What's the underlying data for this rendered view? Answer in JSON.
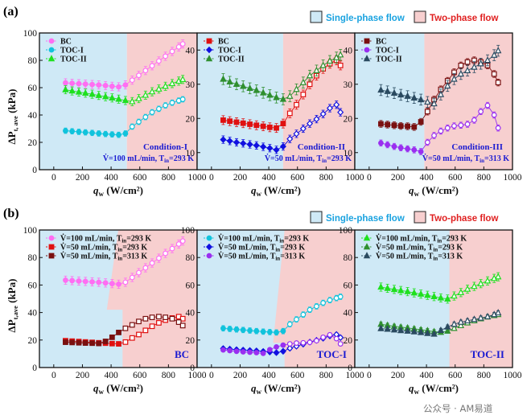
{
  "figure": {
    "panel_a_label": "(a)",
    "panel_b_label": "(b)",
    "single_phase_label": "Single-phase flow",
    "two_phase_label": "Two-phase flow",
    "xlabel_q": "q",
    "xlabel_sub": "w",
    "xlabel_unit": " (W/cm²)",
    "ylabel_delta": "ΔP",
    "ylabel_sub_a": "t, ave",
    "ylabel_sub_b": "t,ave",
    "ylabel_unit": " (kPa)",
    "watermark": "公众号 · AM易道",
    "colors": {
      "single_phase": "#cfe9f6",
      "two_phase": "#f7cfcf",
      "bc": "#ff6ef2",
      "toc1": "#11c3dc",
      "toc2": "#1fe01f",
      "red": "#e01010",
      "blue": "#1010e0",
      "olive": "#2f8f2f",
      "maroon": "#7a1010",
      "purple": "#9a2ff0",
      "darkteal": "#2a4a60",
      "condition_text": "#1b1bd1"
    }
  },
  "chart_data": [
    {
      "id": "a1",
      "type": "line",
      "ylim": [
        0,
        100
      ],
      "xlim": [
        -100,
        1000
      ],
      "yticks": [
        0,
        20,
        40,
        60,
        80,
        100
      ],
      "xticks": [
        0,
        200,
        400,
        600,
        800,
        1000
      ],
      "transition_q": 510,
      "legend": [
        "BC",
        "TOC-I",
        "TOC-II"
      ],
      "condition": "Condition-I",
      "condition_line": "V̇=100 mL/min, T",
      "condition_sub": "in",
      "condition_tail": "=293 K",
      "x": [
        82,
        128,
        175,
        221,
        268,
        314,
        361,
        407,
        453,
        500,
        547,
        593,
        640,
        686,
        733,
        779,
        826,
        872,
        900
      ],
      "series": [
        {
          "name": "BC",
          "color": "bc",
          "marker": "circle",
          "err": 3,
          "values": [
            63.5,
            63.2,
            62.9,
            62.6,
            62.3,
            62.0,
            61.5,
            61.0,
            60.6,
            62.0,
            65.5,
            69.0,
            72.5,
            76.0,
            79.5,
            83.0,
            86.5,
            89.8,
            92.0
          ]
        },
        {
          "name": "TOC-I",
          "color": "toc1",
          "marker": "circle",
          "err": 2,
          "values": [
            28.5,
            28.1,
            27.7,
            27.3,
            26.9,
            26.5,
            26.1,
            25.8,
            25.5,
            26.5,
            31.5,
            35.0,
            38.5,
            42.0,
            44.5,
            47.0,
            49.0,
            50.5,
            51.5
          ]
        },
        {
          "name": "TOC-II",
          "color": "toc2",
          "marker": "triangle",
          "err": 3,
          "values": [
            58.5,
            57.6,
            56.8,
            56.0,
            55.2,
            54.3,
            53.4,
            52.5,
            51.6,
            50.6,
            49.8,
            52.0,
            54.5,
            57.0,
            59.0,
            61.0,
            63.0,
            64.8,
            66.0
          ]
        }
      ]
    },
    {
      "id": "a2",
      "type": "line",
      "ylim": [
        5,
        45
      ],
      "xlim": [
        -100,
        1000
      ],
      "yticks": [
        10,
        20,
        30,
        40
      ],
      "xticks": [
        0,
        200,
        400,
        600,
        800,
        1000
      ],
      "transition_q": 500,
      "legend": [
        "BC",
        "TOC-I",
        "TOC-II"
      ],
      "condition": "Condition-II",
      "condition_line": "V̇=50 mL/min, T",
      "condition_sub": "in",
      "condition_tail": "=293 K",
      "x": [
        82,
        128,
        175,
        221,
        268,
        314,
        361,
        407,
        453,
        500,
        547,
        593,
        640,
        686,
        733,
        779,
        826,
        872,
        900
      ],
      "series": [
        {
          "name": "BC",
          "color": "red",
          "marker": "square",
          "err": 1.3,
          "values": [
            19.5,
            19.2,
            18.9,
            18.6,
            18.3,
            18.0,
            17.7,
            17.4,
            17.2,
            18.5,
            21.5,
            24.0,
            27.0,
            30.0,
            32.5,
            34.5,
            36.0,
            37.0,
            35.5
          ]
        },
        {
          "name": "TOC-I",
          "color": "blue",
          "marker": "diamond",
          "err": 1.1,
          "values": [
            13.8,
            13.4,
            13.0,
            12.7,
            12.4,
            12.1,
            11.7,
            11.3,
            10.8,
            11.8,
            14.0,
            15.5,
            17.0,
            18.5,
            19.8,
            21.3,
            23.0,
            24.0,
            21.8
          ]
        },
        {
          "name": "TOC-II",
          "color": "olive",
          "marker": "triangle",
          "err": 1.6,
          "values": [
            31.5,
            30.7,
            30.0,
            29.4,
            28.8,
            28.2,
            27.5,
            26.8,
            26.1,
            25.6,
            26.5,
            28.5,
            30.5,
            32.5,
            34.0,
            35.5,
            36.8,
            37.8,
            38.6
          ]
        }
      ]
    },
    {
      "id": "a3",
      "type": "line",
      "ylim": [
        5,
        45
      ],
      "xlim": [
        -100,
        1000
      ],
      "yticks": [
        10,
        20,
        30,
        40
      ],
      "xticks": [
        0,
        200,
        400,
        600,
        800,
        1000
      ],
      "transition_q": 385,
      "legend": [
        "BC",
        "TOC-I",
        "TOC-II"
      ],
      "condition": "Condition-III",
      "condition_line": "V̇=50 mL/min, T",
      "condition_sub": "in",
      "condition_tail": "=313 K",
      "x": [
        82,
        128,
        175,
        221,
        268,
        314,
        361,
        407,
        453,
        500,
        547,
        593,
        640,
        686,
        733,
        779,
        826,
        872,
        900
      ],
      "series": [
        {
          "name": "BC",
          "color": "maroon",
          "marker": "square",
          "err": 1.0,
          "values": [
            18.4,
            18.2,
            18.0,
            17.8,
            17.7,
            17.5,
            19.0,
            22.0,
            25.5,
            28.5,
            31.0,
            33.5,
            35.5,
            36.5,
            37.0,
            36.5,
            35.5,
            33.0,
            30.5
          ]
        },
        {
          "name": "TOC-I",
          "color": "purple",
          "marker": "circle",
          "err": 0.9,
          "values": [
            12.8,
            12.3,
            11.8,
            11.4,
            11.1,
            10.8,
            10.3,
            13.0,
            15.0,
            16.3,
            17.2,
            17.8,
            18.0,
            18.3,
            19.5,
            22.0,
            23.8,
            21.0,
            17.2
          ]
        },
        {
          "name": "TOC-II",
          "color": "darkteal",
          "marker": "triangle",
          "err": 1.6,
          "values": [
            28.3,
            27.9,
            27.4,
            26.9,
            26.5,
            26.0,
            25.5,
            24.8,
            24.3,
            27.0,
            29.5,
            31.5,
            33.0,
            34.0,
            35.0,
            36.0,
            37.0,
            38.5,
            39.8
          ]
        }
      ]
    },
    {
      "id": "b1",
      "type": "line",
      "ylim": [
        0,
        100
      ],
      "xlim": [
        -100,
        1000
      ],
      "yticks": [
        0,
        20,
        40,
        60,
        80,
        100
      ],
      "xticks": [
        0,
        200,
        400,
        600,
        800,
        1000
      ],
      "transition_q": 480,
      "transition_top_q": 450,
      "transition_y": 42,
      "transition_y_q": 370,
      "legend": [
        "V̇=100 mL/min, T_in=293 K",
        "V̇=50 mL/min, T_in=293 K",
        "V̇=50 mL/min, T_in=313 K"
      ],
      "tag": "BC",
      "x": [
        82,
        128,
        175,
        221,
        268,
        314,
        361,
        407,
        453,
        500,
        547,
        593,
        640,
        686,
        733,
        779,
        826,
        872,
        900
      ],
      "series": [
        {
          "name": "V̇=100 mL/min, Tin=293 K",
          "color": "bc",
          "marker": "circle",
          "err": 3,
          "values": [
            63.5,
            63.2,
            62.9,
            62.6,
            62.3,
            62.0,
            61.5,
            61.0,
            60.6,
            62.0,
            65.5,
            69.0,
            72.5,
            76.0,
            79.5,
            83.0,
            86.5,
            89.8,
            92.0
          ]
        },
        {
          "name": "V̇=50 mL/min, Tin=293 K",
          "color": "red",
          "marker": "square",
          "err": 1.6,
          "values": [
            19.5,
            19.2,
            18.9,
            18.6,
            18.3,
            18.0,
            17.7,
            17.4,
            17.2,
            18.5,
            21.5,
            24.0,
            27.0,
            30.0,
            32.5,
            34.5,
            36.0,
            37.0,
            35.5
          ]
        },
        {
          "name": "V̇=50 mL/min, Tin=313 K",
          "color": "maroon",
          "marker": "square",
          "err": 1.6,
          "values": [
            18.4,
            18.2,
            18.0,
            17.8,
            17.7,
            17.5,
            19.0,
            22.0,
            25.5,
            28.5,
            31.0,
            33.5,
            35.5,
            36.5,
            37.0,
            36.5,
            35.5,
            33.0,
            30.5
          ]
        }
      ]
    },
    {
      "id": "b2",
      "type": "line",
      "ylim": [
        0,
        100
      ],
      "xlim": [
        -100,
        1000
      ],
      "yticks": [
        0,
        20,
        40,
        60,
        80,
        100
      ],
      "xticks": [
        0,
        200,
        400,
        600,
        800,
        1000
      ],
      "transition_q": 510,
      "transition_top_q": 510,
      "transition_y": 18,
      "transition_y_q": 430,
      "legend": [
        "V̇=100 mL/min, T_in=293 K",
        "V̇=50 mL/min, T_in=293 K",
        "V̇=50 mL/min, T_in=313 K"
      ],
      "tag": "TOC-I",
      "x": [
        82,
        128,
        175,
        221,
        268,
        314,
        361,
        407,
        453,
        500,
        547,
        593,
        640,
        686,
        733,
        779,
        826,
        872,
        900
      ],
      "series": [
        {
          "name": "V̇=100 mL/min, Tin=293 K",
          "color": "toc1",
          "marker": "circle",
          "err": 2,
          "values": [
            28.5,
            28.1,
            27.7,
            27.3,
            26.9,
            26.5,
            26.1,
            25.8,
            25.5,
            26.5,
            31.5,
            35.0,
            38.5,
            42.0,
            44.5,
            47.0,
            49.0,
            50.5,
            51.5
          ]
        },
        {
          "name": "V̇=50 mL/min, Tin=293 K",
          "color": "blue",
          "marker": "diamond",
          "err": 1.3,
          "values": [
            13.8,
            13.4,
            13.0,
            12.7,
            12.4,
            12.1,
            11.7,
            11.3,
            10.8,
            11.8,
            14.0,
            15.5,
            17.0,
            18.5,
            19.8,
            21.3,
            23.0,
            24.0,
            21.8
          ]
        },
        {
          "name": "V̇=50 mL/min, Tin=313 K",
          "color": "purple",
          "marker": "circle",
          "err": 1.3,
          "values": [
            12.8,
            12.3,
            11.8,
            11.4,
            11.1,
            10.8,
            10.3,
            13.0,
            15.0,
            16.3,
            17.2,
            17.8,
            18.0,
            18.3,
            19.5,
            22.0,
            23.8,
            21.0,
            17.2
          ]
        }
      ]
    },
    {
      "id": "b3",
      "type": "line",
      "ylim": [
        0,
        100
      ],
      "xlim": [
        -100,
        1000
      ],
      "yticks": [
        0,
        20,
        40,
        60,
        80,
        100
      ],
      "xticks": [
        0,
        200,
        400,
        600,
        800,
        1000
      ],
      "transition_q": 560,
      "transition_top_q": 560,
      "transition_y": 0,
      "transition_y_q": 560,
      "legend": [
        "V̇=100 mL/min, T_in=293 K",
        "V̇=50 mL/min, T_in=293 K",
        "V̇=50 mL/min, T_in=313 K"
      ],
      "tag": "TOC-II",
      "x": [
        82,
        128,
        175,
        221,
        268,
        314,
        361,
        407,
        453,
        500,
        547,
        593,
        640,
        686,
        733,
        779,
        826,
        872,
        900
      ],
      "series": [
        {
          "name": "V̇=100 mL/min, Tin=293 K",
          "color": "toc2",
          "marker": "triangle",
          "err": 3,
          "values": [
            58.5,
            57.6,
            56.8,
            56.0,
            55.2,
            54.3,
            53.4,
            52.5,
            51.6,
            50.6,
            49.8,
            52.0,
            54.5,
            57.0,
            59.0,
            61.0,
            63.0,
            64.8,
            66.0
          ]
        },
        {
          "name": "V̇=50 mL/min, Tin=293 K",
          "color": "olive",
          "marker": "triangle",
          "err": 1.5,
          "values": [
            31.5,
            30.7,
            30.0,
            29.4,
            28.8,
            28.2,
            27.5,
            26.8,
            26.1,
            25.6,
            26.5,
            28.5,
            30.5,
            32.5,
            34.0,
            35.5,
            36.8,
            37.8,
            38.6
          ]
        },
        {
          "name": "V̇=50 mL/min, Tin=313 K",
          "color": "darkteal",
          "marker": "triangle",
          "err": 1.5,
          "values": [
            28.3,
            27.9,
            27.4,
            26.9,
            26.5,
            26.0,
            25.5,
            24.8,
            24.3,
            27.0,
            29.5,
            31.5,
            33.0,
            34.0,
            35.0,
            36.0,
            37.0,
            38.5,
            39.8
          ]
        }
      ]
    }
  ]
}
